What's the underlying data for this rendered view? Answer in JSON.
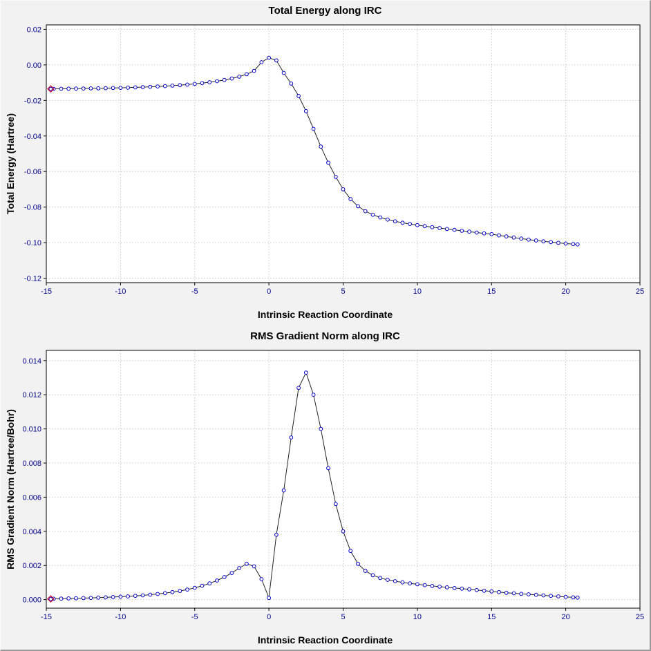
{
  "style": {
    "page_bg": "#f2f2f2",
    "plot_bg": "#ffffff",
    "frame_color": "#000000",
    "grid_color": "#c9c9c9",
    "tick_color": "#000000",
    "tick_label_color": "#00008b",
    "text_color": "#000000",
    "marker_color": "#0000cc",
    "line_color": "#222222",
    "first_marker_color": "#cc0022"
  },
  "chart_data": [
    {
      "type": "line",
      "title": "Total Energy along IRC",
      "xlabel": "Intrinsic Reaction Coordinate",
      "ylabel": "Total Energy (Hartree)",
      "xlim": [
        -15,
        25
      ],
      "ylim": [
        -0.1225,
        0.0225
      ],
      "xticks": [
        -15,
        -10,
        -5,
        0,
        5,
        10,
        15,
        20,
        25
      ],
      "xtick_labels": [
        "-15",
        "-10",
        "-5",
        "0",
        "5",
        "10",
        "15",
        "20",
        "25"
      ],
      "yticks": [
        -0.12,
        -0.1,
        -0.08,
        -0.06,
        -0.04,
        -0.02,
        0.0,
        0.02
      ],
      "ytick_labels": [
        "-0.12",
        "-0.10",
        "-0.08",
        "-0.06",
        "-0.04",
        "-0.02",
        "0.00",
        "0.02"
      ],
      "grid": true,
      "legend": "none",
      "first_point_highlighted": true,
      "x": [
        -14.7,
        -14.5,
        -14,
        -13.5,
        -13,
        -12.5,
        -12,
        -11.5,
        -11,
        -10.5,
        -10,
        -9.5,
        -9,
        -8.5,
        -8,
        -7.5,
        -7,
        -6.5,
        -6,
        -5.5,
        -5,
        -4.5,
        -4,
        -3.5,
        -3,
        -2.5,
        -2,
        -1.5,
        -1,
        -0.5,
        0,
        0.5,
        1,
        1.5,
        2,
        2.5,
        3,
        3.5,
        4,
        4.5,
        5,
        5.5,
        6,
        6.5,
        7,
        7.5,
        8,
        8.5,
        9,
        9.5,
        10,
        10.5,
        11,
        11.5,
        12,
        12.5,
        13,
        13.5,
        14,
        14.5,
        15,
        15.5,
        16,
        16.5,
        17,
        17.5,
        18,
        18.5,
        19,
        19.5,
        20,
        20.5,
        20.8
      ],
      "y": [
        -0.0135,
        -0.01348,
        -0.01344,
        -0.0134,
        -0.01335,
        -0.0133,
        -0.01324,
        -0.01317,
        -0.0131,
        -0.01301,
        -0.01291,
        -0.01279,
        -0.01266,
        -0.01251,
        -0.01234,
        -0.01215,
        -0.01193,
        -0.01168,
        -0.0114,
        -0.01108,
        -0.01071,
        -0.01028,
        -0.00978,
        -0.00919,
        -0.00849,
        -0.00765,
        -0.0066,
        -0.00525,
        -0.0034,
        0.0015,
        0.004,
        0.0025,
        -0.0045,
        -0.0105,
        -0.0175,
        -0.026,
        -0.036,
        -0.046,
        -0.055,
        -0.063,
        -0.07,
        -0.0755,
        -0.0795,
        -0.0823,
        -0.0843,
        -0.0858,
        -0.087,
        -0.088,
        -0.0888,
        -0.0895,
        -0.0901,
        -0.0907,
        -0.0913,
        -0.0918,
        -0.0923,
        -0.0928,
        -0.0933,
        -0.0938,
        -0.0943,
        -0.0948,
        -0.0952,
        -0.0959,
        -0.0965,
        -0.0971,
        -0.0977,
        -0.0983,
        -0.0988,
        -0.0993,
        -0.0997,
        -0.1001,
        -0.1005,
        -0.1008,
        -0.101
      ]
    },
    {
      "type": "line",
      "title": "RMS Gradient Norm along IRC",
      "xlabel": "Intrinsic Reaction Coordinate",
      "ylabel": "RMS Gradient Norm (Hartree/Bohr)",
      "xlim": [
        -15,
        25
      ],
      "ylim": [
        -0.0005,
        0.0146
      ],
      "xticks": [
        -15,
        -10,
        -5,
        0,
        5,
        10,
        15,
        20,
        25
      ],
      "xtick_labels": [
        "-15",
        "-10",
        "-5",
        "0",
        "5",
        "10",
        "15",
        "20",
        "25"
      ],
      "yticks": [
        0.0,
        0.002,
        0.004,
        0.006,
        0.008,
        0.01,
        0.012,
        0.014
      ],
      "ytick_labels": [
        "0.000",
        "0.002",
        "0.004",
        "0.006",
        "0.008",
        "0.010",
        "0.012",
        "0.014"
      ],
      "grid": true,
      "legend": "none",
      "first_point_highlighted": true,
      "x": [
        -14.7,
        -14.5,
        -14,
        -13.5,
        -13,
        -12.5,
        -12,
        -11.5,
        -11,
        -10.5,
        -10,
        -9.5,
        -9,
        -8.5,
        -8,
        -7.5,
        -7,
        -6.5,
        -6,
        -5.5,
        -5,
        -4.5,
        -4,
        -3.5,
        -3,
        -2.5,
        -2,
        -1.5,
        -1,
        -0.5,
        0,
        0.5,
        1,
        1.5,
        2,
        2.5,
        3,
        3.5,
        4,
        4.5,
        5,
        5.5,
        6,
        6.5,
        7,
        7.5,
        8,
        8.5,
        9,
        9.5,
        10,
        10.5,
        11,
        11.5,
        12,
        12.5,
        13,
        13.5,
        14,
        14.5,
        15,
        15.5,
        16,
        16.5,
        17,
        17.5,
        18,
        18.5,
        19,
        19.5,
        20,
        20.5,
        20.8
      ],
      "y": [
        4e-05,
        5e-05,
        6e-05,
        7e-05,
        8e-05,
        9e-05,
        0.0001,
        0.00012,
        0.00013,
        0.00015,
        0.00017,
        0.00019,
        0.00022,
        0.00025,
        0.00029,
        0.00033,
        0.00038,
        0.00044,
        0.00051,
        0.00059,
        0.00069,
        0.00081,
        0.00095,
        0.00112,
        0.00132,
        0.00156,
        0.00185,
        0.0021,
        0.00195,
        0.0012,
        0.0001,
        0.0038,
        0.0064,
        0.0095,
        0.0124,
        0.0133,
        0.012,
        0.01,
        0.0077,
        0.0056,
        0.004,
        0.00285,
        0.0021,
        0.00168,
        0.00143,
        0.00127,
        0.00116,
        0.00108,
        0.00101,
        0.00095,
        0.0009,
        0.00085,
        0.0008,
        0.00076,
        0.00072,
        0.00068,
        0.00064,
        0.0006,
        0.00056,
        0.00052,
        0.00048,
        0.00044,
        0.0004,
        0.00037,
        0.00034,
        0.00031,
        0.00028,
        0.00025,
        0.00022,
        0.00019,
        0.00016,
        0.00013,
        0.00012
      ]
    }
  ]
}
